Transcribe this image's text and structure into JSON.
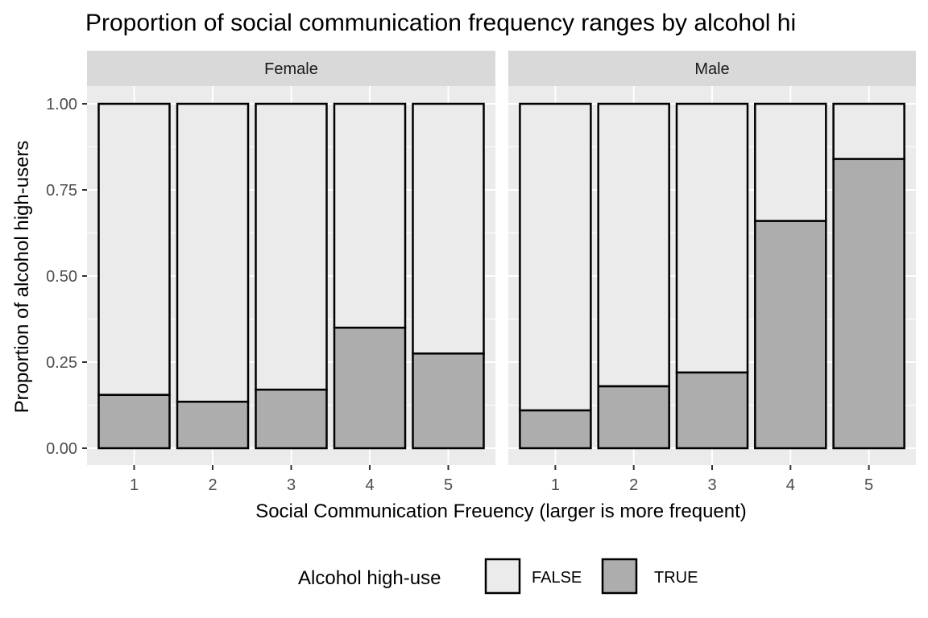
{
  "chart_data": {
    "type": "bar",
    "stacked": true,
    "title": "Proportion of social communication frequency ranges  by alcohol hi",
    "xlabel": "Social Communication Freuency (larger is more frequent)",
    "ylabel": "Proportion of alcohol high-users",
    "categories": [
      "1",
      "2",
      "3",
      "4",
      "5"
    ],
    "ylim": [
      0,
      1
    ],
    "yticks": [
      "0.00",
      "0.25",
      "0.50",
      "0.75",
      "1.00"
    ],
    "grid": true,
    "facets": [
      {
        "label": "Female",
        "series": [
          {
            "name": "FALSE",
            "values": [
              0.845,
              0.865,
              0.83,
              0.65,
              0.725
            ]
          },
          {
            "name": "TRUE",
            "values": [
              0.155,
              0.135,
              0.17,
              0.35,
              0.275
            ]
          }
        ]
      },
      {
        "label": "Male",
        "series": [
          {
            "name": "FALSE",
            "values": [
              0.89,
              0.82,
              0.78,
              0.34,
              0.16
            ]
          },
          {
            "name": "TRUE",
            "values": [
              0.11,
              0.18,
              0.22,
              0.66,
              0.84
            ]
          }
        ]
      }
    ],
    "legend": {
      "title": "Alcohol high-use",
      "position": "bottom",
      "entries": [
        {
          "name": "FALSE",
          "color": "#ebebeb"
        },
        {
          "name": "TRUE",
          "color": "#adadad"
        }
      ]
    },
    "colors": {
      "panel_bg": "#ebebeb",
      "strip_bg": "#d9d9d9",
      "grid": "#ffffff",
      "false_fill": "#ebebeb",
      "true_fill": "#adadad",
      "bar_stroke": "#000000"
    }
  }
}
